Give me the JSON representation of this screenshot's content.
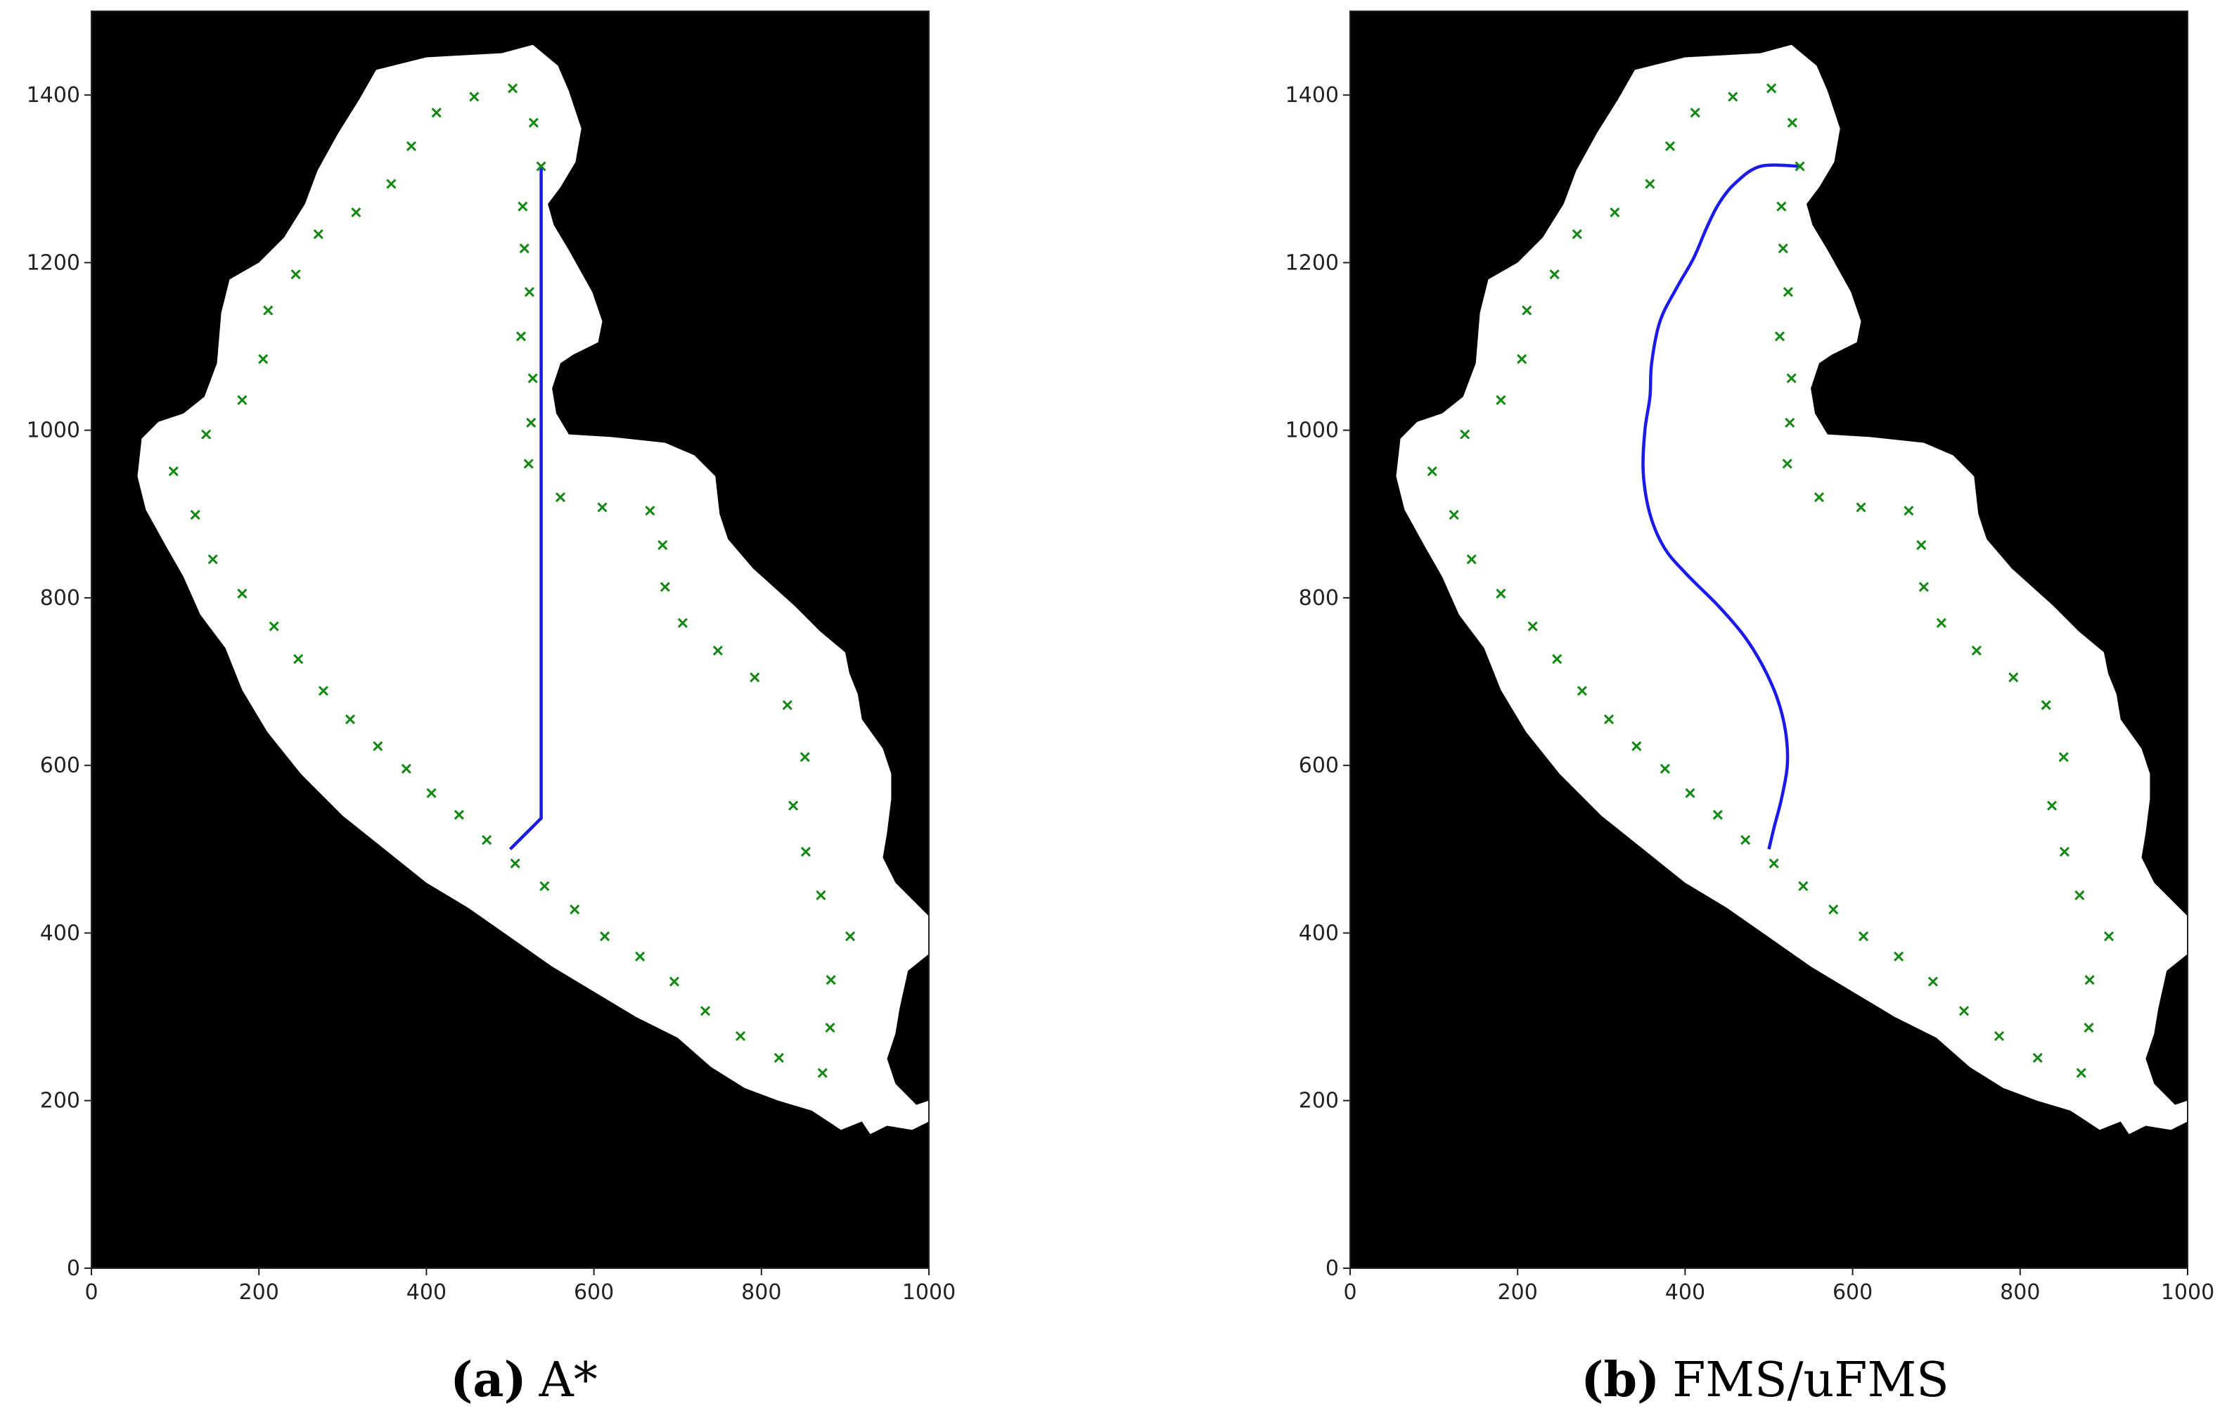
{
  "colors": {
    "background": "#000000",
    "region": "#ffffff",
    "path": "#1a1aee",
    "waypoint": "#118811",
    "axis": "#222222"
  },
  "chart_data": [
    {
      "type": "scatter",
      "panel_tag": "(a)",
      "panel_title": "A*",
      "xlim": [
        0,
        1000
      ],
      "ylim": [
        0,
        1500
      ],
      "xticks": [
        0,
        200,
        400,
        600,
        800,
        1000
      ],
      "yticks": [
        0,
        200,
        400,
        600,
        800,
        1000,
        1200,
        1400
      ],
      "grid": false,
      "path_style": "straight-segments",
      "path": [
        [
          500,
          500
        ],
        [
          537,
          537
        ],
        [
          537,
          1315
        ]
      ],
      "waypoints": [
        [
          503,
          1408
        ],
        [
          528,
          1367
        ],
        [
          537,
          1315
        ],
        [
          515,
          1267
        ],
        [
          517,
          1217
        ],
        [
          523,
          1165
        ],
        [
          513,
          1112
        ],
        [
          527,
          1062
        ],
        [
          525,
          1009
        ],
        [
          522,
          960
        ],
        [
          560,
          920
        ],
        [
          610,
          908
        ],
        [
          667,
          904
        ],
        [
          682,
          863
        ],
        [
          685,
          813
        ],
        [
          706,
          770
        ],
        [
          748,
          737
        ],
        [
          792,
          705
        ],
        [
          831,
          672
        ],
        [
          852,
          610
        ],
        [
          838,
          552
        ],
        [
          853,
          497
        ],
        [
          871,
          445
        ],
        [
          906,
          396
        ],
        [
          883,
          344
        ],
        [
          882,
          287
        ],
        [
          873,
          233
        ],
        [
          821,
          251
        ],
        [
          775,
          277
        ],
        [
          733,
          307
        ],
        [
          696,
          342
        ],
        [
          655,
          372
        ],
        [
          613,
          396
        ],
        [
          577,
          428
        ],
        [
          541,
          456
        ],
        [
          506,
          483
        ],
        [
          472,
          511
        ],
        [
          439,
          541
        ],
        [
          406,
          567
        ],
        [
          376,
          596
        ],
        [
          342,
          623
        ],
        [
          309,
          655
        ],
        [
          277,
          689
        ],
        [
          247,
          727
        ],
        [
          218,
          766
        ],
        [
          180,
          805
        ],
        [
          145,
          846
        ],
        [
          124,
          899
        ],
        [
          98,
          951
        ],
        [
          137,
          995
        ],
        [
          180,
          1036
        ],
        [
          205,
          1085
        ],
        [
          211,
          1143
        ],
        [
          244,
          1186
        ],
        [
          271,
          1234
        ],
        [
          316,
          1260
        ],
        [
          358,
          1294
        ],
        [
          382,
          1339
        ],
        [
          412,
          1379
        ],
        [
          457,
          1398
        ]
      ],
      "region": [
        [
          340,
          1430
        ],
        [
          400,
          1445
        ],
        [
          490,
          1450
        ],
        [
          527,
          1460
        ],
        [
          557,
          1435
        ],
        [
          570,
          1405
        ],
        [
          585,
          1360
        ],
        [
          578,
          1320
        ],
        [
          560,
          1290
        ],
        [
          545,
          1270
        ],
        [
          552,
          1245
        ],
        [
          570,
          1215
        ],
        [
          598,
          1165
        ],
        [
          610,
          1130
        ],
        [
          605,
          1105
        ],
        [
          575,
          1090
        ],
        [
          560,
          1080
        ],
        [
          550,
          1050
        ],
        [
          555,
          1020
        ],
        [
          570,
          995
        ],
        [
          620,
          992
        ],
        [
          685,
          985
        ],
        [
          720,
          970
        ],
        [
          745,
          945
        ],
        [
          750,
          900
        ],
        [
          760,
          870
        ],
        [
          790,
          835
        ],
        [
          840,
          790
        ],
        [
          870,
          760
        ],
        [
          900,
          735
        ],
        [
          905,
          710
        ],
        [
          915,
          685
        ],
        [
          920,
          655
        ],
        [
          945,
          620
        ],
        [
          955,
          590
        ],
        [
          955,
          560
        ],
        [
          950,
          520
        ],
        [
          945,
          490
        ],
        [
          960,
          460
        ],
        [
          980,
          440
        ],
        [
          1000,
          420
        ],
        [
          1015,
          400
        ],
        [
          1000,
          375
        ],
        [
          975,
          355
        ],
        [
          965,
          310
        ],
        [
          960,
          280
        ],
        [
          950,
          250
        ],
        [
          960,
          220
        ],
        [
          985,
          195
        ],
        [
          1000,
          200
        ],
        [
          1015,
          190
        ],
        [
          1000,
          175
        ],
        [
          980,
          165
        ],
        [
          950,
          170
        ],
        [
          930,
          160
        ],
        [
          920,
          175
        ],
        [
          895,
          165
        ],
        [
          880,
          175
        ],
        [
          860,
          188
        ],
        [
          820,
          200
        ],
        [
          780,
          215
        ],
        [
          740,
          240
        ],
        [
          700,
          275
        ],
        [
          650,
          300
        ],
        [
          600,
          330
        ],
        [
          550,
          360
        ],
        [
          500,
          395
        ],
        [
          450,
          430
        ],
        [
          400,
          460
        ],
        [
          350,
          500
        ],
        [
          300,
          540
        ],
        [
          250,
          590
        ],
        [
          210,
          640
        ],
        [
          180,
          690
        ],
        [
          160,
          740
        ],
        [
          130,
          780
        ],
        [
          110,
          825
        ],
        [
          90,
          860
        ],
        [
          65,
          905
        ],
        [
          55,
          945
        ],
        [
          60,
          990
        ],
        [
          80,
          1010
        ],
        [
          110,
          1020
        ],
        [
          135,
          1040
        ],
        [
          150,
          1080
        ],
        [
          155,
          1140
        ],
        [
          165,
          1180
        ],
        [
          200,
          1200
        ],
        [
          230,
          1230
        ],
        [
          255,
          1270
        ],
        [
          270,
          1310
        ],
        [
          295,
          1355
        ],
        [
          320,
          1395
        ]
      ]
    },
    {
      "type": "scatter",
      "panel_tag": "(b)",
      "panel_title": "FMS/uFMS",
      "xlim": [
        0,
        1000
      ],
      "ylim": [
        0,
        1500
      ],
      "xticks": [
        0,
        200,
        400,
        600,
        800,
        1000
      ],
      "yticks": [
        0,
        200,
        400,
        600,
        800,
        1000,
        1200,
        1400
      ],
      "grid": false,
      "path_style": "smooth",
      "path": [
        [
          500,
          500
        ],
        [
          506,
          525
        ],
        [
          515,
          560
        ],
        [
          522,
          600
        ],
        [
          520,
          640
        ],
        [
          510,
          680
        ],
        [
          492,
          720
        ],
        [
          470,
          755
        ],
        [
          440,
          790
        ],
        [
          400,
          830
        ],
        [
          375,
          860
        ],
        [
          358,
          900
        ],
        [
          350,
          950
        ],
        [
          352,
          1000
        ],
        [
          358,
          1040
        ],
        [
          360,
          1080
        ],
        [
          370,
          1130
        ],
        [
          390,
          1170
        ],
        [
          410,
          1205
        ],
        [
          425,
          1240
        ],
        [
          440,
          1270
        ],
        [
          460,
          1295
        ],
        [
          490,
          1315
        ],
        [
          537,
          1315
        ]
      ],
      "waypoints": [
        [
          503,
          1408
        ],
        [
          528,
          1367
        ],
        [
          537,
          1315
        ],
        [
          515,
          1267
        ],
        [
          517,
          1217
        ],
        [
          523,
          1165
        ],
        [
          513,
          1112
        ],
        [
          527,
          1062
        ],
        [
          525,
          1009
        ],
        [
          522,
          960
        ],
        [
          560,
          920
        ],
        [
          610,
          908
        ],
        [
          667,
          904
        ],
        [
          682,
          863
        ],
        [
          685,
          813
        ],
        [
          706,
          770
        ],
        [
          748,
          737
        ],
        [
          792,
          705
        ],
        [
          831,
          672
        ],
        [
          852,
          610
        ],
        [
          838,
          552
        ],
        [
          853,
          497
        ],
        [
          871,
          445
        ],
        [
          906,
          396
        ],
        [
          883,
          344
        ],
        [
          882,
          287
        ],
        [
          873,
          233
        ],
        [
          821,
          251
        ],
        [
          775,
          277
        ],
        [
          733,
          307
        ],
        [
          696,
          342
        ],
        [
          655,
          372
        ],
        [
          613,
          396
        ],
        [
          577,
          428
        ],
        [
          541,
          456
        ],
        [
          506,
          483
        ],
        [
          472,
          511
        ],
        [
          439,
          541
        ],
        [
          406,
          567
        ],
        [
          376,
          596
        ],
        [
          342,
          623
        ],
        [
          309,
          655
        ],
        [
          277,
          689
        ],
        [
          247,
          727
        ],
        [
          218,
          766
        ],
        [
          180,
          805
        ],
        [
          145,
          846
        ],
        [
          124,
          899
        ],
        [
          98,
          951
        ],
        [
          137,
          995
        ],
        [
          180,
          1036
        ],
        [
          205,
          1085
        ],
        [
          211,
          1143
        ],
        [
          244,
          1186
        ],
        [
          271,
          1234
        ],
        [
          316,
          1260
        ],
        [
          358,
          1294
        ],
        [
          382,
          1339
        ],
        [
          412,
          1379
        ],
        [
          457,
          1398
        ]
      ],
      "region": [
        [
          340,
          1430
        ],
        [
          400,
          1445
        ],
        [
          490,
          1450
        ],
        [
          527,
          1460
        ],
        [
          557,
          1435
        ],
        [
          570,
          1405
        ],
        [
          585,
          1360
        ],
        [
          578,
          1320
        ],
        [
          560,
          1290
        ],
        [
          545,
          1270
        ],
        [
          552,
          1245
        ],
        [
          570,
          1215
        ],
        [
          598,
          1165
        ],
        [
          610,
          1130
        ],
        [
          605,
          1105
        ],
        [
          575,
          1090
        ],
        [
          560,
          1080
        ],
        [
          550,
          1050
        ],
        [
          555,
          1020
        ],
        [
          570,
          995
        ],
        [
          620,
          992
        ],
        [
          685,
          985
        ],
        [
          720,
          970
        ],
        [
          745,
          945
        ],
        [
          750,
          900
        ],
        [
          760,
          870
        ],
        [
          790,
          835
        ],
        [
          840,
          790
        ],
        [
          870,
          760
        ],
        [
          900,
          735
        ],
        [
          905,
          710
        ],
        [
          915,
          685
        ],
        [
          920,
          655
        ],
        [
          945,
          620
        ],
        [
          955,
          590
        ],
        [
          955,
          560
        ],
        [
          950,
          520
        ],
        [
          945,
          490
        ],
        [
          960,
          460
        ],
        [
          980,
          440
        ],
        [
          1000,
          420
        ],
        [
          1015,
          400
        ],
        [
          1000,
          375
        ],
        [
          975,
          355
        ],
        [
          965,
          310
        ],
        [
          960,
          280
        ],
        [
          950,
          250
        ],
        [
          960,
          220
        ],
        [
          985,
          195
        ],
        [
          1000,
          200
        ],
        [
          1015,
          190
        ],
        [
          1000,
          175
        ],
        [
          980,
          165
        ],
        [
          950,
          170
        ],
        [
          930,
          160
        ],
        [
          920,
          175
        ],
        [
          895,
          165
        ],
        [
          880,
          175
        ],
        [
          860,
          188
        ],
        [
          820,
          200
        ],
        [
          780,
          215
        ],
        [
          740,
          240
        ],
        [
          700,
          275
        ],
        [
          650,
          300
        ],
        [
          600,
          330
        ],
        [
          550,
          360
        ],
        [
          500,
          395
        ],
        [
          450,
          430
        ],
        [
          400,
          460
        ],
        [
          350,
          500
        ],
        [
          300,
          540
        ],
        [
          250,
          590
        ],
        [
          210,
          640
        ],
        [
          180,
          690
        ],
        [
          160,
          740
        ],
        [
          130,
          780
        ],
        [
          110,
          825
        ],
        [
          90,
          860
        ],
        [
          65,
          905
        ],
        [
          55,
          945
        ],
        [
          60,
          990
        ],
        [
          80,
          1010
        ],
        [
          110,
          1020
        ],
        [
          135,
          1040
        ],
        [
          150,
          1080
        ],
        [
          155,
          1140
        ],
        [
          165,
          1180
        ],
        [
          200,
          1200
        ],
        [
          230,
          1230
        ],
        [
          255,
          1270
        ],
        [
          270,
          1310
        ],
        [
          295,
          1355
        ],
        [
          320,
          1395
        ]
      ]
    }
  ]
}
